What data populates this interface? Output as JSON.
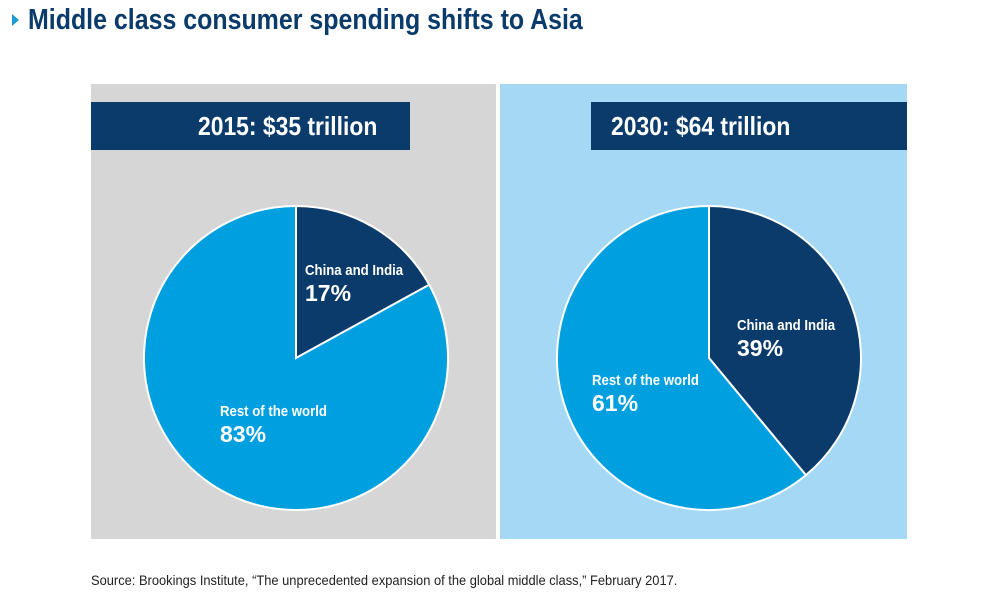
{
  "title": "Middle class consumer spending shifts to Asia",
  "source": "Source: Brookings Institute, “The unprecedented expansion of the global middle class,” February 2017.",
  "colors": {
    "dark_navy": "#0b3b6a",
    "bright_blue": "#009fe0",
    "gray_panel": "#d6d6d6",
    "light_blue_panel": "#a4d8f4",
    "title_marker": "#1e9ad6"
  },
  "chart_data": [
    {
      "type": "pie",
      "title": "2015: $35 trillion",
      "slices": [
        {
          "label": "China and India",
          "value": 17,
          "display": "17%",
          "color": "#0b3b6a"
        },
        {
          "label": "Rest of the world",
          "value": 83,
          "display": "83%",
          "color": "#009fe0"
        }
      ]
    },
    {
      "type": "pie",
      "title": "2030: $64 trillion",
      "slices": [
        {
          "label": "China and India",
          "value": 39,
          "display": "39%",
          "color": "#0b3b6a"
        },
        {
          "label": "Rest of the world",
          "value": 61,
          "display": "61%",
          "color": "#009fe0"
        }
      ]
    }
  ]
}
